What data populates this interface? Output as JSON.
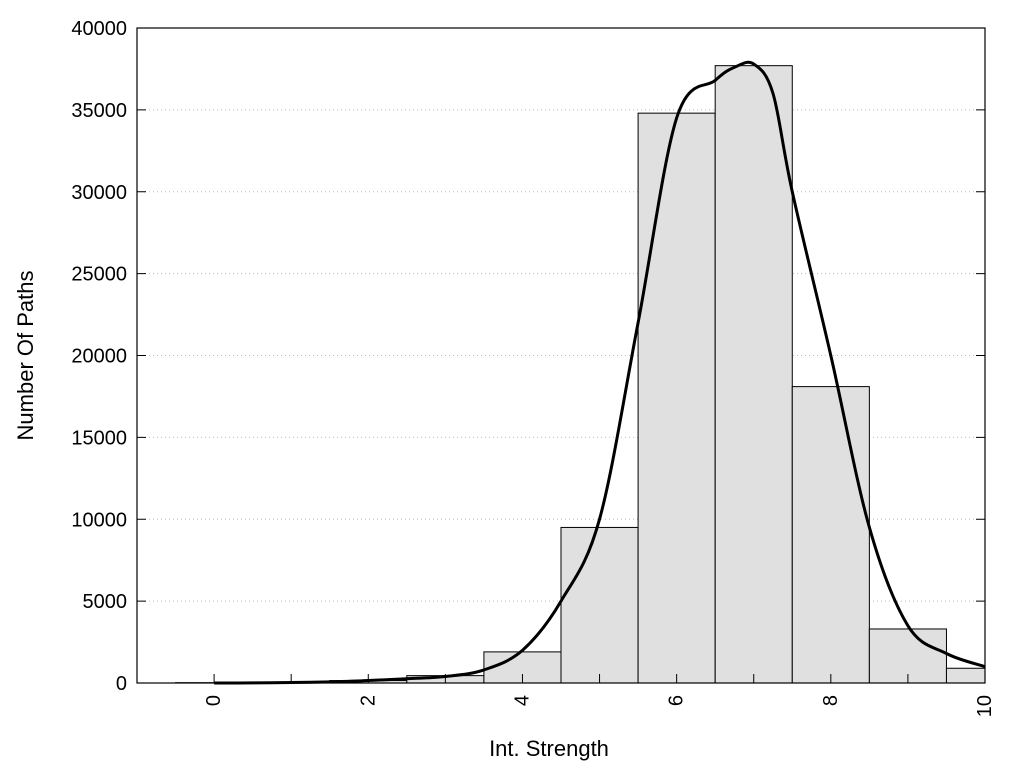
{
  "chart_data": {
    "type": "bar",
    "xlabel": "Int. Strength",
    "ylabel": "Number Of Paths",
    "xlim": [
      -1,
      10
    ],
    "ylim": [
      0,
      40000
    ],
    "x_ticks": [
      0,
      2,
      4,
      6,
      8,
      10
    ],
    "y_ticks": [
      0,
      5000,
      10000,
      15000,
      20000,
      25000,
      30000,
      35000,
      40000
    ],
    "grid": "horizontal-dotted",
    "bar_color": "#e0e0e0",
    "bars": [
      {
        "x": 0,
        "value": 20
      },
      {
        "x": 1,
        "value": 50
      },
      {
        "x": 2,
        "value": 150
      },
      {
        "x": 3,
        "value": 450
      },
      {
        "x": 4,
        "value": 1900
      },
      {
        "x": 5,
        "value": 9500
      },
      {
        "x": 6,
        "value": 34800
      },
      {
        "x": 7,
        "value": 37700
      },
      {
        "x": 8,
        "value": 18100
      },
      {
        "x": 9,
        "value": 3300
      },
      {
        "x": 10,
        "value": 900
      }
    ],
    "curve": [
      [
        0,
        0
      ],
      [
        0.5,
        5
      ],
      [
        1,
        30
      ],
      [
        1.5,
        70
      ],
      [
        2,
        150
      ],
      [
        2.5,
        260
      ],
      [
        3,
        400
      ],
      [
        3.5,
        800
      ],
      [
        4,
        2000
      ],
      [
        4.5,
        5000
      ],
      [
        5,
        10000
      ],
      [
        5.5,
        22000
      ],
      [
        6,
        34500
      ],
      [
        6.5,
        36800
      ],
      [
        6.75,
        37600
      ],
      [
        7,
        37800
      ],
      [
        7.25,
        36000
      ],
      [
        7.5,
        30000
      ],
      [
        8,
        20000
      ],
      [
        8.5,
        9500
      ],
      [
        9,
        3500
      ],
      [
        9.5,
        1800
      ],
      [
        10,
        1000
      ]
    ]
  }
}
